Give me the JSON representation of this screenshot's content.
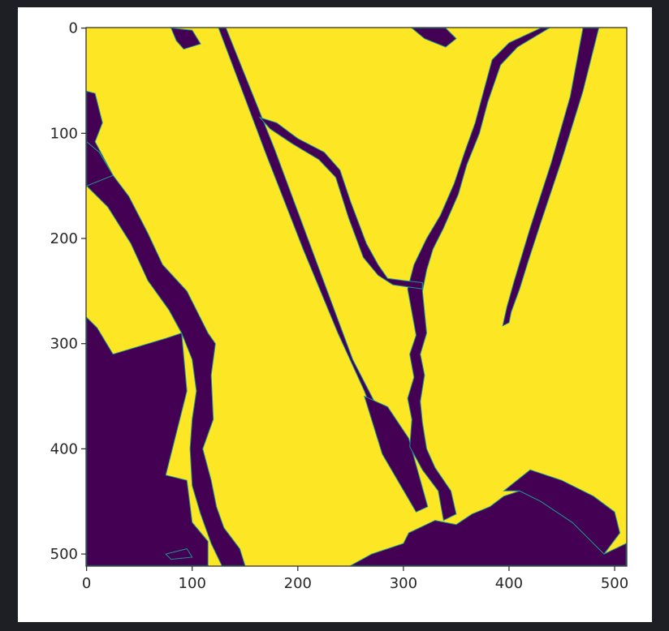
{
  "chart_data": {
    "type": "heatmap",
    "title": "",
    "xlabel": "",
    "ylabel": "",
    "xlim": [
      0,
      511
    ],
    "ylim": [
      511,
      0
    ],
    "x_ticks": [
      0,
      100,
      200,
      300,
      400,
      500
    ],
    "y_ticks": [
      0,
      100,
      200,
      300,
      400,
      500
    ],
    "image_size": [
      512,
      512
    ],
    "colormap": "viridis",
    "value_range": [
      0,
      1
    ],
    "colors": {
      "low": "#440154",
      "high": "#fde725",
      "edge": "#21918c"
    },
    "grid": false,
    "legend": "none",
    "regions": [
      {
        "value": 0,
        "polygon": [
          [
            0,
            275
          ],
          [
            10,
            285
          ],
          [
            25,
            310
          ],
          [
            75,
            295
          ],
          [
            90,
            290
          ],
          [
            95,
            345
          ],
          [
            85,
            385
          ],
          [
            75,
            425
          ],
          [
            95,
            430
          ],
          [
            100,
            470
          ],
          [
            115,
            488
          ],
          [
            115,
            511
          ],
          [
            0,
            511
          ]
        ]
      },
      {
        "value": 0,
        "polygon": [
          [
            0,
            60
          ],
          [
            8,
            62
          ],
          [
            15,
            90
          ],
          [
            8,
            108
          ],
          [
            25,
            140
          ],
          [
            40,
            160
          ],
          [
            58,
            195
          ],
          [
            72,
            225
          ],
          [
            95,
            250
          ],
          [
            105,
            270
          ],
          [
            115,
            290
          ],
          [
            122,
            300
          ],
          [
            118,
            330
          ],
          [
            120,
            372
          ],
          [
            110,
            400
          ],
          [
            118,
            430
          ],
          [
            123,
            455
          ],
          [
            130,
            475
          ],
          [
            145,
            495
          ],
          [
            150,
            511
          ],
          [
            128,
            511
          ],
          [
            118,
            490
          ],
          [
            108,
            462
          ],
          [
            100,
            435
          ],
          [
            98,
            400
          ],
          [
            100,
            372
          ],
          [
            104,
            345
          ],
          [
            100,
            315
          ],
          [
            90,
            290
          ],
          [
            78,
            268
          ],
          [
            58,
            240
          ],
          [
            42,
            205
          ],
          [
            20,
            170
          ],
          [
            0,
            150
          ]
        ]
      },
      {
        "value": 0,
        "polygon": [
          [
            0,
            108
          ],
          [
            12,
            118
          ],
          [
            25,
            140
          ],
          [
            0,
            150
          ]
        ]
      },
      {
        "value": 0,
        "polygon": [
          [
            125,
            0
          ],
          [
            132,
            0
          ],
          [
            150,
            45
          ],
          [
            178,
            115
          ],
          [
            215,
            215
          ],
          [
            252,
            315
          ],
          [
            275,
            360
          ],
          [
            282,
            380
          ],
          [
            278,
            385
          ],
          [
            263,
            345
          ],
          [
            238,
            290
          ],
          [
            205,
            210
          ],
          [
            170,
            120
          ],
          [
            140,
            40
          ]
        ]
      },
      {
        "value": 0,
        "polygon": [
          [
            263,
            350
          ],
          [
            285,
            360
          ],
          [
            305,
            390
          ],
          [
            323,
            455
          ],
          [
            312,
            460
          ],
          [
            280,
            405
          ]
        ]
      },
      {
        "value": 0,
        "polygon": [
          [
            470,
            0
          ],
          [
            485,
            0
          ],
          [
            470,
            60
          ],
          [
            450,
            125
          ],
          [
            430,
            185
          ],
          [
            418,
            222
          ],
          [
            410,
            248
          ],
          [
            402,
            270
          ],
          [
            400,
            280
          ],
          [
            394,
            283
          ],
          [
            398,
            265
          ],
          [
            405,
            240
          ],
          [
            420,
            190
          ],
          [
            440,
            128
          ],
          [
            458,
            65
          ]
        ]
      },
      {
        "value": 0,
        "polygon": [
          [
            430,
            0
          ],
          [
            438,
            0
          ],
          [
            408,
            18
          ],
          [
            392,
            35
          ],
          [
            380,
            70
          ],
          [
            372,
            100
          ],
          [
            360,
            130
          ],
          [
            352,
            158
          ],
          [
            338,
            190
          ],
          [
            328,
            210
          ],
          [
            322,
            230
          ],
          [
            318,
            250
          ],
          [
            320,
            270
          ],
          [
            322,
            290
          ],
          [
            316,
            310
          ],
          [
            320,
            330
          ],
          [
            316,
            355
          ],
          [
            318,
            375
          ],
          [
            322,
            400
          ],
          [
            330,
            418
          ],
          [
            345,
            440
          ],
          [
            350,
            462
          ],
          [
            338,
            468
          ],
          [
            333,
            440
          ],
          [
            318,
            420
          ],
          [
            306,
            398
          ],
          [
            308,
            372
          ],
          [
            304,
            352
          ],
          [
            310,
            332
          ],
          [
            306,
            310
          ],
          [
            312,
            292
          ],
          [
            308,
            270
          ],
          [
            304,
            248
          ],
          [
            310,
            225
          ],
          [
            322,
            200
          ],
          [
            335,
            178
          ],
          [
            348,
            148
          ],
          [
            358,
            118
          ],
          [
            368,
            90
          ],
          [
            376,
            60
          ],
          [
            384,
            30
          ],
          [
            400,
            14
          ]
        ]
      },
      {
        "value": 0,
        "polygon": [
          [
            164,
            85
          ],
          [
            180,
            90
          ],
          [
            200,
            105
          ],
          [
            225,
            118
          ],
          [
            240,
            135
          ],
          [
            250,
            165
          ],
          [
            265,
            205
          ],
          [
            276,
            225
          ],
          [
            285,
            238
          ],
          [
            300,
            240
          ],
          [
            318,
            242
          ],
          [
            318,
            248
          ],
          [
            290,
            244
          ],
          [
            276,
            235
          ],
          [
            262,
            218
          ],
          [
            248,
            180
          ],
          [
            236,
            142
          ],
          [
            220,
            125
          ],
          [
            195,
            110
          ],
          [
            174,
            96
          ]
        ]
      },
      {
        "value": 0,
        "polygon": [
          [
            305,
            480
          ],
          [
            330,
            468
          ],
          [
            350,
            472
          ],
          [
            365,
            462
          ],
          [
            382,
            455
          ],
          [
            395,
            445
          ],
          [
            410,
            440
          ],
          [
            430,
            450
          ],
          [
            460,
            470
          ],
          [
            490,
            500
          ],
          [
            511,
            490
          ],
          [
            511,
            511
          ],
          [
            250,
            511
          ],
          [
            270,
            500
          ],
          [
            300,
            490
          ]
        ]
      },
      {
        "value": 0,
        "polygon": [
          [
            395,
            440
          ],
          [
            420,
            420
          ],
          [
            450,
            430
          ],
          [
            480,
            445
          ],
          [
            500,
            460
          ],
          [
            505,
            480
          ],
          [
            490,
            500
          ],
          [
            460,
            470
          ],
          [
            430,
            450
          ],
          [
            410,
            440
          ]
        ]
      },
      {
        "value": 0,
        "polygon": [
          [
            75,
            500
          ],
          [
            95,
            495
          ],
          [
            100,
            503
          ],
          [
            80,
            505
          ]
        ]
      },
      {
        "value": 0,
        "polygon": [
          [
            80,
            0
          ],
          [
            100,
            2
          ],
          [
            108,
            15
          ],
          [
            92,
            20
          ],
          [
            85,
            12
          ]
        ]
      },
      {
        "value": 0,
        "polygon": [
          [
            308,
            0
          ],
          [
            340,
            0
          ],
          [
            350,
            10
          ],
          [
            340,
            18
          ],
          [
            320,
            10
          ]
        ]
      }
    ]
  }
}
